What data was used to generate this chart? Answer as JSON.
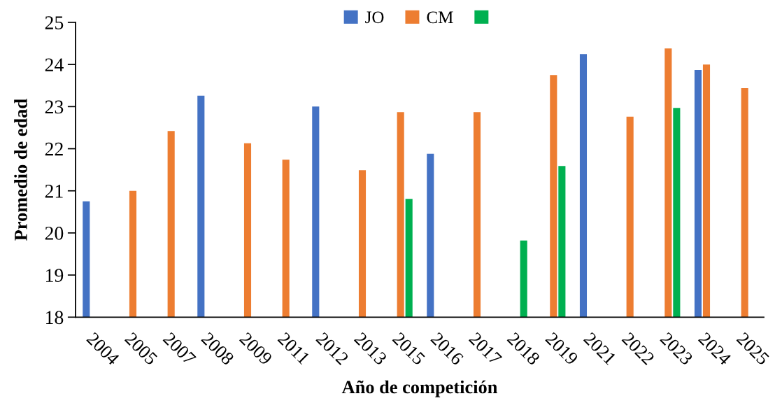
{
  "chart_data": {
    "type": "bar",
    "xlabel": "Año de competición",
    "ylabel": "Promedio de edad",
    "categories": [
      "2004",
      "2005",
      "2007",
      "2008",
      "2009",
      "2011",
      "2012",
      "2013",
      "2015",
      "2016",
      "2017",
      "2018",
      "2019",
      "2021",
      "2022",
      "2023",
      "2024",
      "2025"
    ],
    "series": [
      {
        "name": "JO",
        "color": "#4472c4",
        "values": [
          20.75,
          null,
          null,
          23.26,
          null,
          null,
          23.0,
          null,
          null,
          21.88,
          null,
          null,
          null,
          24.25,
          null,
          null,
          23.87,
          null
        ]
      },
      {
        "name": "CM",
        "color": "#ed7d31",
        "values": [
          null,
          21.0,
          22.42,
          null,
          22.13,
          21.74,
          null,
          21.49,
          22.87,
          null,
          22.87,
          null,
          23.75,
          null,
          22.76,
          24.38,
          24.0,
          23.44
        ]
      },
      {
        "color": "#00b050",
        "values": [
          null,
          null,
          null,
          null,
          null,
          null,
          null,
          null,
          20.81,
          null,
          null,
          19.82,
          21.59,
          null,
          null,
          22.97,
          null,
          null
        ]
      }
    ],
    "ylim": [
      18,
      25
    ],
    "yticks": [
      18,
      19,
      20,
      21,
      22,
      23,
      24,
      25
    ],
    "legend": "top"
  }
}
